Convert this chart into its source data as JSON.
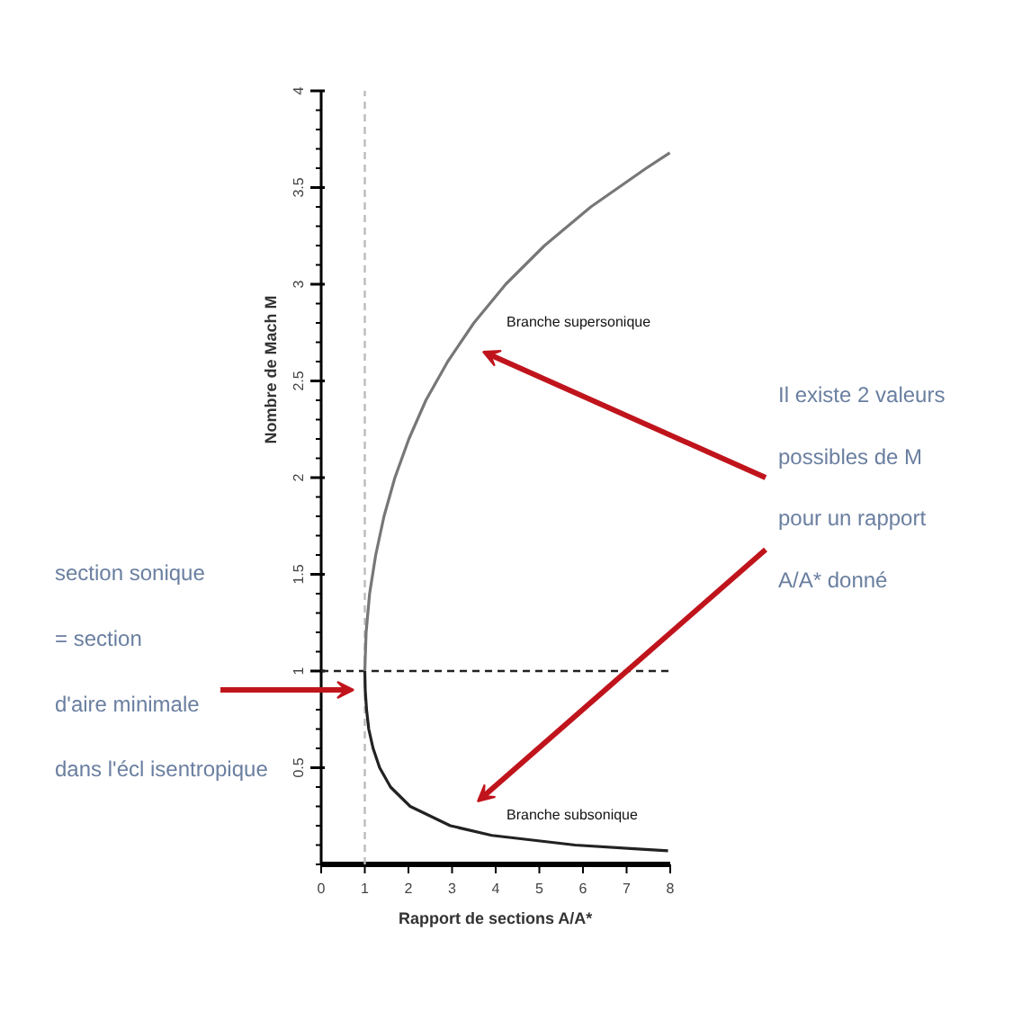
{
  "chart_data": {
    "type": "line",
    "xlabel": "Rapport de sections A/A*",
    "ylabel": "Nombre de Mach M",
    "xlim": [
      0,
      8
    ],
    "ylim": [
      0,
      4
    ],
    "xticks": [
      0,
      1,
      2,
      3,
      4,
      5,
      6,
      7,
      8
    ],
    "yticks": [
      0.5,
      1,
      1.5,
      2,
      2.5,
      3,
      3.5,
      4
    ],
    "grid": false,
    "marker": "none",
    "line_style": "solid",
    "series": [
      {
        "color": "#222222",
        "x": [
          7.95,
          7.26,
          5.82,
          3.91,
          2.96,
          2.04,
          1.59,
          1.34,
          1.19,
          1.09,
          1.04,
          1.01,
          1.0
        ],
        "values": [
          0.07,
          0.08,
          0.1,
          0.15,
          0.2,
          0.3,
          0.4,
          0.5,
          0.6,
          0.7,
          0.8,
          0.9,
          1.0
        ]
      },
      {
        "color": "#777777",
        "x": [
          1.0,
          1.03,
          1.11,
          1.25,
          1.44,
          1.69,
          2.01,
          2.4,
          2.9,
          3.5,
          4.23,
          5.12,
          6.18,
          7.45,
          7.99
        ],
        "values": [
          1.0,
          1.2,
          1.4,
          1.6,
          1.8,
          2.0,
          2.2,
          2.4,
          2.6,
          2.8,
          3.0,
          3.2,
          3.4,
          3.6,
          3.68
        ]
      }
    ],
    "ref_lines": [
      {
        "axis": "x",
        "value": 1,
        "color": "#bbbbbb",
        "line_style": "dashed"
      },
      {
        "axis": "y",
        "value": 1,
        "color": "#222222",
        "line_style": "dashed"
      }
    ],
    "annotations": [
      "Branche supersonique",
      "Branche subsonique",
      "section sonique\n= section\nd'aire minimale\ndans l'écl isentropique",
      "Il existe 2 valeurs\npossibles de M\npour un rapport\nA/A* donné"
    ]
  }
}
